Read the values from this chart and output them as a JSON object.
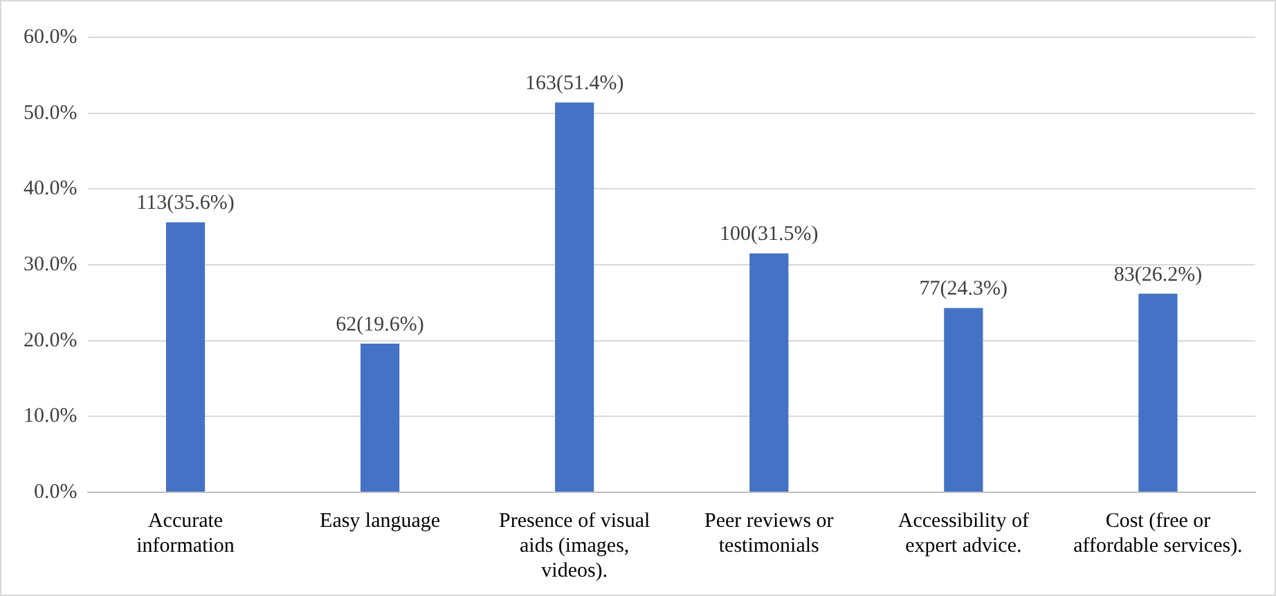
{
  "chart_data": {
    "type": "bar",
    "categories": [
      "Accurate information",
      "Easy language",
      "Presence of visual aids (images, videos).",
      "Peer reviews or testimonials",
      "Accessibility of expert advice.",
      "Cost (free or affordable services)."
    ],
    "values": [
      35.6,
      19.6,
      51.4,
      31.5,
      24.3,
      26.2
    ],
    "value_labels": [
      "113(35.6%)",
      "62(19.6%)",
      "163(51.4%)",
      "100(31.5%)",
      "77(24.3%)",
      "83(26.2%)"
    ],
    "color": "#4472c4",
    "ylim": [
      0,
      60
    ],
    "yticks": [
      {
        "value": 0,
        "label": "0.0%"
      },
      {
        "value": 10,
        "label": "10.0%"
      },
      {
        "value": 20,
        "label": "20.0%"
      },
      {
        "value": 30,
        "label": "30.0%"
      },
      {
        "value": 40,
        "label": "40.0%"
      },
      {
        "value": 50,
        "label": "50.0%"
      },
      {
        "value": 60,
        "label": "60.0%"
      }
    ],
    "grid": "y"
  }
}
